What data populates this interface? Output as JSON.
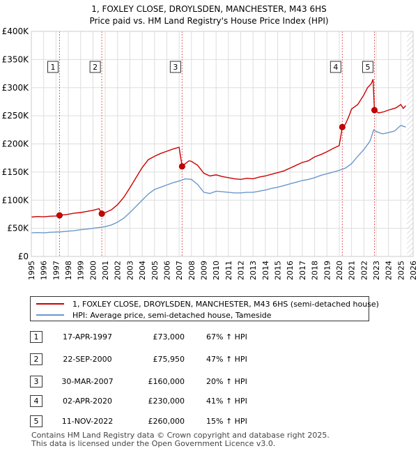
{
  "chart_data": {
    "type": "line",
    "title": "1, FOXLEY CLOSE, DROYLSDEN, MANCHESTER, M43 6HS",
    "subtitle": "Price paid vs. HM Land Registry's House Price Index (HPI)",
    "xlim": [
      1995,
      2026
    ],
    "ylim": [
      0,
      400000
    ],
    "x_ticks": [
      "1995",
      "1996",
      "1997",
      "1998",
      "1999",
      "2000",
      "2001",
      "2002",
      "2003",
      "2004",
      "2005",
      "2006",
      "2007",
      "2008",
      "2009",
      "2010",
      "2011",
      "2012",
      "2013",
      "2014",
      "2015",
      "2016",
      "2017",
      "2018",
      "2019",
      "2020",
      "2021",
      "2022",
      "2023",
      "2024",
      "2025",
      "2026"
    ],
    "y_ticks": [
      {
        "value": 0,
        "label": "£0"
      },
      {
        "value": 50000,
        "label": "£50K"
      },
      {
        "value": 100000,
        "label": "£100K"
      },
      {
        "value": 150000,
        "label": "£150K"
      },
      {
        "value": 200000,
        "label": "£200K"
      },
      {
        "value": 250000,
        "label": "£250K"
      },
      {
        "value": 300000,
        "label": "£300K"
      },
      {
        "value": 350000,
        "label": "£350K"
      },
      {
        "value": 400000,
        "label": "£400K"
      }
    ],
    "grid": true,
    "projection_start": 2025.5,
    "series": [
      {
        "name": "1, FOXLEY CLOSE, DROYLSDEN, MANCHESTER, M43 6HS (semi-detached house)",
        "color": "#cc0000",
        "points": [
          [
            1995.0,
            70000
          ],
          [
            1995.5,
            71000
          ],
          [
            1996.0,
            70500
          ],
          [
            1996.5,
            71500
          ],
          [
            1997.0,
            72000
          ],
          [
            1997.29,
            73000
          ],
          [
            1997.5,
            73500
          ],
          [
            1998.0,
            75000
          ],
          [
            1998.5,
            77000
          ],
          [
            1999.0,
            78000
          ],
          [
            1999.5,
            80000
          ],
          [
            2000.0,
            82000
          ],
          [
            2000.5,
            85000
          ],
          [
            2000.72,
            75950
          ],
          [
            2001.0,
            78000
          ],
          [
            2001.5,
            83000
          ],
          [
            2002.0,
            92000
          ],
          [
            2002.5,
            105000
          ],
          [
            2003.0,
            122000
          ],
          [
            2003.5,
            140000
          ],
          [
            2004.0,
            158000
          ],
          [
            2004.5,
            172000
          ],
          [
            2005.0,
            178000
          ],
          [
            2005.5,
            183000
          ],
          [
            2006.0,
            187000
          ],
          [
            2006.5,
            191000
          ],
          [
            2007.0,
            194000
          ],
          [
            2007.24,
            160000
          ],
          [
            2007.5,
            165000
          ],
          [
            2007.8,
            170000
          ],
          [
            2008.0,
            169000
          ],
          [
            2008.5,
            162000
          ],
          [
            2009.0,
            148000
          ],
          [
            2009.5,
            143000
          ],
          [
            2010.0,
            145000
          ],
          [
            2010.5,
            142000
          ],
          [
            2011.0,
            140000
          ],
          [
            2011.5,
            138000
          ],
          [
            2012.0,
            137000
          ],
          [
            2012.5,
            139000
          ],
          [
            2013.0,
            138000
          ],
          [
            2013.5,
            141000
          ],
          [
            2014.0,
            143000
          ],
          [
            2014.5,
            146000
          ],
          [
            2015.0,
            149000
          ],
          [
            2015.5,
            152000
          ],
          [
            2016.0,
            157000
          ],
          [
            2016.5,
            162000
          ],
          [
            2017.0,
            167000
          ],
          [
            2017.5,
            170000
          ],
          [
            2018.0,
            177000
          ],
          [
            2018.5,
            181000
          ],
          [
            2019.0,
            186000
          ],
          [
            2019.5,
            192000
          ],
          [
            2020.0,
            197000
          ],
          [
            2020.25,
            230000
          ],
          [
            2020.5,
            235000
          ],
          [
            2020.8,
            250000
          ],
          [
            2021.0,
            262000
          ],
          [
            2021.5,
            270000
          ],
          [
            2022.0,
            287000
          ],
          [
            2022.3,
            300000
          ],
          [
            2022.6,
            307000
          ],
          [
            2022.75,
            315000
          ],
          [
            2022.86,
            260000
          ],
          [
            2023.2,
            255000
          ],
          [
            2023.6,
            257000
          ],
          [
            2024.0,
            260000
          ],
          [
            2024.3,
            262000
          ],
          [
            2024.6,
            264000
          ],
          [
            2025.0,
            270000
          ],
          [
            2025.2,
            263000
          ],
          [
            2025.4,
            268000
          ]
        ]
      },
      {
        "name": "HPI: Average price, semi-detached house, Tameside",
        "color": "#6a97cc",
        "points": [
          [
            1995.0,
            42000
          ],
          [
            1995.5,
            42500
          ],
          [
            1996.0,
            42000
          ],
          [
            1996.5,
            43000
          ],
          [
            1997.0,
            43500
          ],
          [
            1997.5,
            44000
          ],
          [
            1998.0,
            45000
          ],
          [
            1998.5,
            46000
          ],
          [
            1999.0,
            47500
          ],
          [
            1999.5,
            48500
          ],
          [
            2000.0,
            50000
          ],
          [
            2000.5,
            51500
          ],
          [
            2001.0,
            53000
          ],
          [
            2001.5,
            56000
          ],
          [
            2002.0,
            61000
          ],
          [
            2002.5,
            68000
          ],
          [
            2003.0,
            78000
          ],
          [
            2003.5,
            89000
          ],
          [
            2004.0,
            100000
          ],
          [
            2004.5,
            111000
          ],
          [
            2005.0,
            119000
          ],
          [
            2005.5,
            123000
          ],
          [
            2006.0,
            127000
          ],
          [
            2006.5,
            131000
          ],
          [
            2007.0,
            134000
          ],
          [
            2007.5,
            138000
          ],
          [
            2008.0,
            137000
          ],
          [
            2008.5,
            128000
          ],
          [
            2009.0,
            114000
          ],
          [
            2009.5,
            112000
          ],
          [
            2010.0,
            116000
          ],
          [
            2010.5,
            115000
          ],
          [
            2011.0,
            114000
          ],
          [
            2011.5,
            113000
          ],
          [
            2012.0,
            113000
          ],
          [
            2012.5,
            114000
          ],
          [
            2013.0,
            114000
          ],
          [
            2013.5,
            116000
          ],
          [
            2014.0,
            118000
          ],
          [
            2014.5,
            121000
          ],
          [
            2015.0,
            123000
          ],
          [
            2015.5,
            126000
          ],
          [
            2016.0,
            129000
          ],
          [
            2016.5,
            132000
          ],
          [
            2017.0,
            135000
          ],
          [
            2017.5,
            137000
          ],
          [
            2018.0,
            140000
          ],
          [
            2018.5,
            144000
          ],
          [
            2019.0,
            147000
          ],
          [
            2019.5,
            150000
          ],
          [
            2020.0,
            153000
          ],
          [
            2020.5,
            157000
          ],
          [
            2021.0,
            165000
          ],
          [
            2021.5,
            178000
          ],
          [
            2022.0,
            190000
          ],
          [
            2022.5,
            205000
          ],
          [
            2022.8,
            225000
          ],
          [
            2023.0,
            222000
          ],
          [
            2023.5,
            218000
          ],
          [
            2024.0,
            220000
          ],
          [
            2024.5,
            223000
          ],
          [
            2025.0,
            233000
          ],
          [
            2025.4,
            230000
          ]
        ]
      }
    ],
    "transactions": [
      {
        "label": "1",
        "x": 1997.29,
        "price": 73000
      },
      {
        "label": "2",
        "x": 2000.72,
        "price": 75950
      },
      {
        "label": "3",
        "x": 2007.24,
        "price": 160000
      },
      {
        "label": "4",
        "x": 2020.25,
        "price": 230000
      },
      {
        "label": "5",
        "x": 2022.86,
        "price": 260000
      }
    ]
  },
  "legend": {
    "property_label": "1, FOXLEY CLOSE, DROYLSDEN, MANCHESTER, M43 6HS (semi-detached house)",
    "hpi_label": "HPI: Average price, semi-detached house, Tameside"
  },
  "table": [
    {
      "num": "1",
      "date": "17-APR-1997",
      "price": "£73,000",
      "hpi": "67% ↑ HPI"
    },
    {
      "num": "2",
      "date": "22-SEP-2000",
      "price": "£75,950",
      "hpi": "47% ↑ HPI"
    },
    {
      "num": "3",
      "date": "30-MAR-2007",
      "price": "£160,000",
      "hpi": "20% ↑ HPI"
    },
    {
      "num": "4",
      "date": "02-APR-2020",
      "price": "£230,000",
      "hpi": "41% ↑ HPI"
    },
    {
      "num": "5",
      "date": "11-NOV-2022",
      "price": "£260,000",
      "hpi": "15% ↑ HPI"
    }
  ],
  "footer": {
    "line1": "Contains HM Land Registry data © Crown copyright and database right 2025.",
    "line2": "This data is licensed under the Open Government Licence v3.0."
  },
  "colors": {
    "property": "#cc0000",
    "hpi": "#6a97cc",
    "grid": "#dddddd",
    "marker_line": "#e06060"
  }
}
